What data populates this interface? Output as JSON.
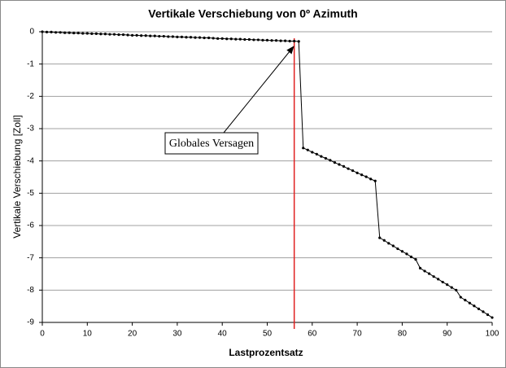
{
  "chart_data": {
    "type": "line",
    "title": "Vertikale Verschiebung von 0º Azimuth",
    "x_label": "Lastprozentsatz",
    "y_label": "Vertikale Verschiebung [Zoll]",
    "annotation": "Globales Versagen",
    "vline": {
      "x": 56,
      "color": "#e02020"
    },
    "x": [
      0,
      1,
      2,
      3,
      4,
      5,
      6,
      7,
      8,
      9,
      10,
      11,
      12,
      13,
      14,
      15,
      16,
      17,
      18,
      19,
      20,
      21,
      22,
      23,
      24,
      25,
      26,
      27,
      28,
      29,
      30,
      31,
      32,
      33,
      34,
      35,
      36,
      37,
      38,
      39,
      40,
      41,
      42,
      43,
      44,
      45,
      46,
      47,
      48,
      49,
      50,
      51,
      52,
      53,
      54,
      55,
      56,
      57,
      58,
      59,
      60,
      61,
      62,
      63,
      64,
      65,
      66,
      67,
      68,
      69,
      70,
      71,
      72,
      73,
      74,
      75,
      76,
      77,
      78,
      79,
      80,
      81,
      82,
      83,
      84,
      85,
      86,
      87,
      88,
      89,
      90,
      91,
      92,
      93,
      94,
      95,
      96,
      97,
      98,
      99,
      100
    ],
    "series": [
      {
        "name": "Verschiebung",
        "color": "#000000",
        "values": [
          0,
          -0.01,
          -0.01,
          -0.02,
          -0.02,
          -0.03,
          -0.03,
          -0.04,
          -0.04,
          -0.05,
          -0.05,
          -0.06,
          -0.06,
          -0.07,
          -0.07,
          -0.08,
          -0.08,
          -0.09,
          -0.09,
          -0.1,
          -0.11,
          -0.11,
          -0.12,
          -0.12,
          -0.13,
          -0.13,
          -0.14,
          -0.14,
          -0.15,
          -0.15,
          -0.16,
          -0.16,
          -0.17,
          -0.17,
          -0.18,
          -0.18,
          -0.19,
          -0.19,
          -0.2,
          -0.21,
          -0.21,
          -0.22,
          -0.22,
          -0.23,
          -0.23,
          -0.24,
          -0.24,
          -0.25,
          -0.25,
          -0.26,
          -0.26,
          -0.27,
          -0.27,
          -0.28,
          -0.28,
          -0.29,
          -0.29,
          -0.3,
          -3.6,
          -3.66,
          -3.73,
          -3.79,
          -3.86,
          -3.92,
          -3.98,
          -4.05,
          -4.11,
          -4.17,
          -4.24,
          -4.3,
          -4.37,
          -4.43,
          -4.49,
          -4.56,
          -4.62,
          -6.38,
          -6.46,
          -6.55,
          -6.63,
          -6.72,
          -6.8,
          -6.88,
          -6.97,
          -7.05,
          -7.32,
          -7.41,
          -7.49,
          -7.58,
          -7.66,
          -7.75,
          -7.83,
          -7.92,
          -8.0,
          -8.22,
          -8.31,
          -8.4,
          -8.49,
          -8.58,
          -8.67,
          -8.76,
          -8.85
        ]
      }
    ],
    "xlim": [
      0,
      100
    ],
    "xticks": [
      0,
      10,
      20,
      30,
      40,
      50,
      60,
      70,
      80,
      90,
      100
    ],
    "ylim": [
      -9,
      0
    ],
    "yticks": [
      0,
      -1,
      -2,
      -3,
      -4,
      -5,
      -6,
      -7,
      -8,
      -9
    ],
    "grid": true
  }
}
